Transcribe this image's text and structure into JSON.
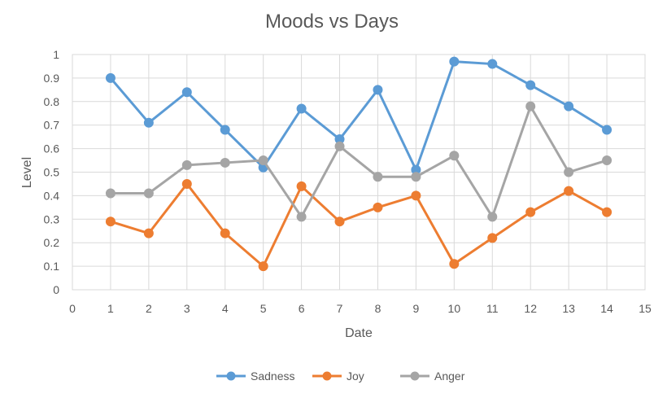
{
  "chart_data": {
    "type": "line",
    "title": "Moods vs Days",
    "xlabel": "Date",
    "ylabel": "Level",
    "xlim": [
      0,
      15
    ],
    "ylim": [
      0,
      1
    ],
    "x_ticks": [
      0,
      1,
      2,
      3,
      4,
      5,
      6,
      7,
      8,
      9,
      10,
      11,
      12,
      13,
      14,
      15
    ],
    "y_ticks": [
      0,
      0.1,
      0.2,
      0.3,
      0.4,
      0.5,
      0.6,
      0.7,
      0.8,
      0.9,
      1
    ],
    "grid": true,
    "legend_position": "bottom",
    "x": [
      1,
      2,
      3,
      4,
      5,
      6,
      7,
      8,
      9,
      10,
      11,
      12,
      13,
      14
    ],
    "series": [
      {
        "name": "Sadness",
        "color": "#5b9bd5",
        "values": [
          0.9,
          0.71,
          0.84,
          0.68,
          0.52,
          0.77,
          0.64,
          0.85,
          0.51,
          0.97,
          0.96,
          0.87,
          0.78,
          0.68
        ]
      },
      {
        "name": "Joy",
        "color": "#ed7d31",
        "values": [
          0.29,
          0.24,
          0.45,
          0.24,
          0.1,
          0.44,
          0.29,
          0.35,
          0.4,
          0.11,
          0.22,
          0.33,
          0.42,
          0.33
        ]
      },
      {
        "name": "Anger",
        "color": "#a5a5a5",
        "values": [
          0.41,
          0.41,
          0.53,
          0.54,
          0.55,
          0.31,
          0.61,
          0.48,
          0.48,
          0.57,
          0.31,
          0.78,
          0.5,
          0.55
        ]
      }
    ]
  }
}
